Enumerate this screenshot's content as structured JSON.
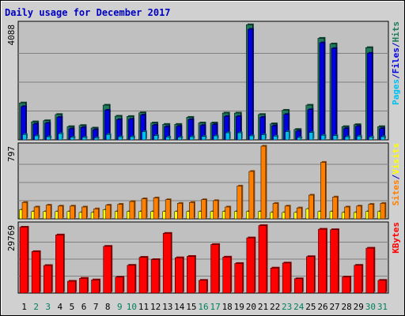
{
  "chart_data": {
    "type": "bar",
    "title": "Daily usage for December 2017",
    "categories": [
      "1",
      "2",
      "3",
      "4",
      "5",
      "6",
      "7",
      "8",
      "9",
      "10",
      "11",
      "12",
      "13",
      "14",
      "15",
      "16",
      "17",
      "18",
      "19",
      "20",
      "21",
      "22",
      "23",
      "24",
      "25",
      "26",
      "27",
      "28",
      "29",
      "30",
      "31"
    ],
    "weekend_days": [
      "2",
      "3",
      "9",
      "10",
      "16",
      "17",
      "23",
      "24",
      "30",
      "31"
    ],
    "colors": {
      "title": "#0000c0",
      "hits": "#1f7a5a",
      "files": "#0000e0",
      "pages": "#00c0f0",
      "visits": "#ffff00",
      "sites": "#ff8000",
      "kbytes": "#ff0000",
      "weekday_label": "#000000",
      "weekend_label": "#00805c",
      "panel_bg": "#c0c0c0",
      "frame_bg": "#d0d0d0"
    },
    "panels": [
      {
        "id": "top",
        "ymax_label": "4088",
        "ymax": 4088,
        "legend": [
          {
            "text": "Pages",
            "color_key": "pages"
          },
          {
            "text": "/",
            "color_key": "title"
          },
          {
            "text": "Files",
            "color_key": "files"
          },
          {
            "text": "/",
            "color_key": "title"
          },
          {
            "text": "Hits",
            "color_key": "hits"
          }
        ],
        "series": [
          {
            "name": "Hits",
            "color_key": "hits",
            "values": [
              1310,
              640,
              680,
              900,
              470,
              510,
              420,
              1230,
              840,
              830,
              960,
              600,
              550,
              550,
              800,
              600,
              600,
              950,
              950,
              4080,
              900,
              570,
              1050,
              370,
              1230,
              3600,
              3400,
              470,
              540,
              3270,
              470
            ]
          },
          {
            "name": "Files",
            "color_key": "files",
            "values": [
              1180,
              560,
              590,
              800,
              390,
              440,
              360,
              1050,
              720,
              730,
              880,
              520,
              470,
              480,
              720,
              510,
              540,
              830,
              830,
              3920,
              800,
              500,
              900,
              310,
              1070,
              3440,
              3240,
              400,
              480,
              3070,
              400
            ]
          },
          {
            "name": "Pages",
            "color_key": "pages",
            "values": [
              190,
              140,
              110,
              220,
              90,
              90,
              70,
              190,
              110,
              110,
              290,
              150,
              100,
              90,
              110,
              120,
              140,
              250,
              250,
              140,
              180,
              130,
              290,
              80,
              260,
              160,
              150,
              110,
              130,
              100,
              110
            ]
          }
        ]
      },
      {
        "id": "middle",
        "ymax_label": "797",
        "ymax": 797,
        "legend": [
          {
            "text": "Sites",
            "color_key": "sites"
          },
          {
            "text": "/",
            "color_key": "title"
          },
          {
            "text": "Visits",
            "color_key": "visits"
          }
        ],
        "series": [
          {
            "name": "Visits",
            "color_key": "visits",
            "values": [
              100,
              80,
              80,
              80,
              80,
              70,
              70,
              100,
              80,
              80,
              80,
              80,
              80,
              80,
              80,
              80,
              80,
              80,
              80,
              80,
              80,
              70,
              70,
              70,
              110,
              80,
              80,
              70,
              70,
              80,
              80
            ]
          },
          {
            "name": "Sites",
            "color_key": "sites",
            "values": [
              180,
              130,
              150,
              140,
              140,
              130,
              110,
              150,
              160,
              190,
              220,
              230,
              210,
              170,
              180,
              210,
              200,
              130,
              360,
              520,
              800,
              170,
              140,
              120,
              260,
              620,
              240,
              130,
              140,
              160,
              170
            ]
          }
        ]
      },
      {
        "id": "bottom",
        "ymax_label": "29769",
        "ymax": 29769,
        "legend": [
          {
            "text": "KBytes",
            "color_key": "kbytes"
          }
        ],
        "series": [
          {
            "name": "KBytes",
            "color_key": "kbytes",
            "values": [
              28900,
              18200,
              12100,
              25500,
              5200,
              6500,
              5800,
              20500,
              7000,
              12200,
              15700,
              14700,
              26200,
              15500,
              16100,
              5600,
              21300,
              15800,
              13000,
              24200,
              29600,
              11000,
              13200,
              6300,
              16000,
              28000,
              27800,
              7100,
              12200,
              19700,
              5600
            ]
          }
        ]
      }
    ]
  }
}
